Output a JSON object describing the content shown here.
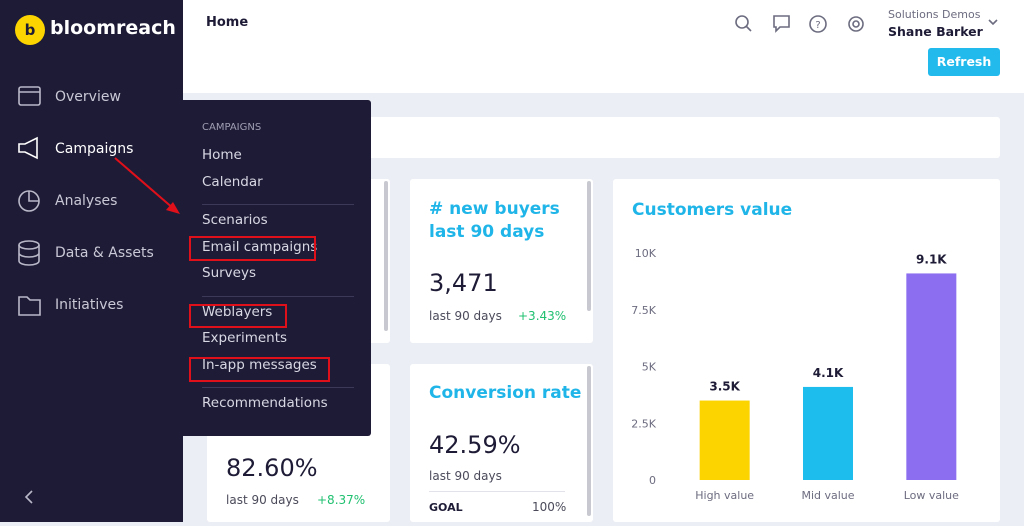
{
  "sidebar": {
    "logo": "bloomreach",
    "nav": [
      "Overview",
      "Campaigns",
      "Analyses",
      "Data & Assets",
      "Initiatives"
    ]
  },
  "header": {
    "title": "Home",
    "org": "Solutions Demos",
    "user": "Shane Barker",
    "refresh": "Refresh"
  },
  "menu": {
    "heading": "CAMPAIGNS",
    "groups": [
      [
        "Home",
        "Calendar"
      ],
      [
        "Scenarios",
        "Email campaigns",
        "Surveys"
      ],
      [
        "Weblayers",
        "Experiments",
        "In-app messages"
      ],
      [
        "Recommendations"
      ]
    ]
  },
  "cards": [
    {
      "title": "# new buyers last 90 days",
      "value": "3,471",
      "period": "last 90 days",
      "change": "+3.43%"
    },
    {
      "value": "82.60%",
      "period": "last 90 days",
      "change": "+8.37%"
    },
    {
      "title": "Conversion rate",
      "value": "42.59%",
      "period": "last 90 days",
      "goal": "GOAL",
      "goal_value": "100%"
    }
  ],
  "chart_data": {
    "type": "bar",
    "title": "Customers value",
    "categories": [
      "High value",
      "Mid value",
      "Low value"
    ],
    "values": [
      3500,
      4100,
      9100
    ],
    "value_labels": [
      "3.5K",
      "4.1K",
      "9.1K"
    ],
    "colors": [
      "#fcd400",
      "#1dbdee",
      "#8b6ff0"
    ],
    "ylim": [
      0,
      10000
    ],
    "yticks": [
      0,
      {
        "value": 2500,
        "label": "2.5K"
      },
      {
        "value": 5000,
        "label": "5K"
      },
      {
        "value": 7500,
        "label": "7.5K"
      },
      {
        "value": 10000,
        "label": "10K"
      }
    ]
  }
}
